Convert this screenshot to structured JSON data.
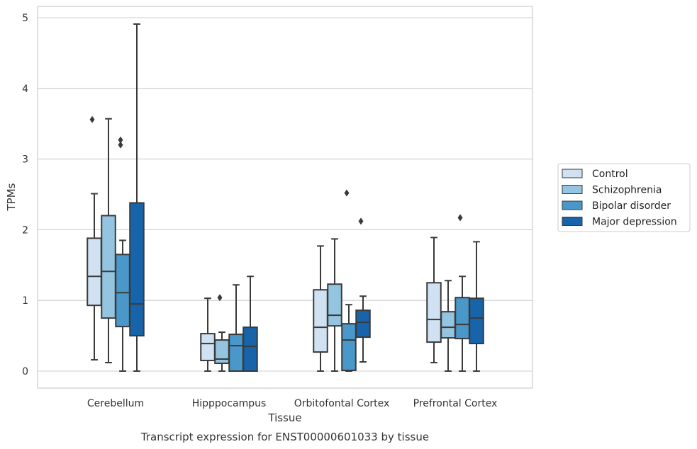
{
  "chart_data": {
    "type": "box",
    "caption": "Transcript expression for ENST00000601033 by tissue",
    "xlabel": "Tissue",
    "ylabel": "TPMs",
    "ylim": [
      -0.23,
      5.16
    ],
    "yticks": [
      0,
      1,
      2,
      3,
      4,
      5
    ],
    "grid": true,
    "legend_position": "right",
    "categories": [
      "Cerebellum",
      "Hipppocampus",
      "Orbitofontal Cortex",
      "Prefrontal Cortex"
    ],
    "series": [
      {
        "name": "Control",
        "color": "#d0e1f2",
        "boxes": [
          {
            "whisker_low": 0.16,
            "q1": 0.93,
            "median": 1.34,
            "q3": 1.88,
            "whisker_high": 2.51,
            "outliers": [
              3.56
            ]
          },
          {
            "whisker_low": 0.0,
            "q1": 0.15,
            "median": 0.39,
            "q3": 0.53,
            "whisker_high": 1.03,
            "outliers": []
          },
          {
            "whisker_low": 0.0,
            "q1": 0.27,
            "median": 0.62,
            "q3": 1.15,
            "whisker_high": 1.77,
            "outliers": []
          },
          {
            "whisker_low": 0.12,
            "q1": 0.41,
            "median": 0.73,
            "q3": 1.25,
            "whisker_high": 1.89,
            "outliers": []
          }
        ]
      },
      {
        "name": "Schizophrenia",
        "color": "#94c4df",
        "boxes": [
          {
            "whisker_low": 0.12,
            "q1": 0.75,
            "median": 1.41,
            "q3": 2.2,
            "whisker_high": 3.57,
            "outliers": []
          },
          {
            "whisker_low": 0.0,
            "q1": 0.11,
            "median": 0.17,
            "q3": 0.44,
            "whisker_high": 0.55,
            "outliers": [
              1.04
            ]
          },
          {
            "whisker_low": 0.0,
            "q1": 0.64,
            "median": 0.79,
            "q3": 1.23,
            "whisker_high": 1.87,
            "outliers": []
          },
          {
            "whisker_low": 0.0,
            "q1": 0.47,
            "median": 0.62,
            "q3": 0.84,
            "whisker_high": 1.28,
            "outliers": []
          }
        ]
      },
      {
        "name": "Bipolar disorder",
        "color": "#4a98c9",
        "boxes": [
          {
            "whisker_low": 0.0,
            "q1": 0.63,
            "median": 1.11,
            "q3": 1.65,
            "whisker_high": 1.85,
            "outliers": [
              3.2,
              3.27
            ]
          },
          {
            "whisker_low": 0.0,
            "q1": 0.0,
            "median": 0.36,
            "q3": 0.52,
            "whisker_high": 1.22,
            "outliers": []
          },
          {
            "whisker_low": 0.0,
            "q1": 0.01,
            "median": 0.44,
            "q3": 0.67,
            "whisker_high": 0.94,
            "outliers": [
              2.52
            ]
          },
          {
            "whisker_low": 0.0,
            "q1": 0.46,
            "median": 0.66,
            "q3": 1.04,
            "whisker_high": 1.34,
            "outliers": [
              2.17
            ]
          }
        ]
      },
      {
        "name": "Major depression",
        "color": "#1764ab",
        "boxes": [
          {
            "whisker_low": 0.0,
            "q1": 0.5,
            "median": 0.95,
            "q3": 2.38,
            "whisker_high": 4.91,
            "outliers": []
          },
          {
            "whisker_low": 0.0,
            "q1": 0.0,
            "median": 0.35,
            "q3": 0.62,
            "whisker_high": 1.34,
            "outliers": []
          },
          {
            "whisker_low": 0.13,
            "q1": 0.48,
            "median": 0.69,
            "q3": 0.86,
            "whisker_high": 1.06,
            "outliers": [
              2.12
            ]
          },
          {
            "whisker_low": 0.0,
            "q1": 0.39,
            "median": 0.75,
            "q3": 1.03,
            "whisker_high": 1.83,
            "outliers": []
          }
        ]
      }
    ]
  }
}
